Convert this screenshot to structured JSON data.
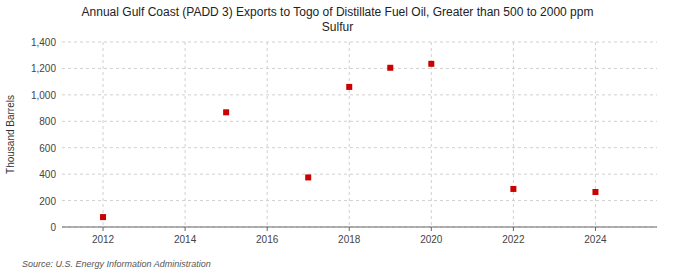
{
  "chart_data": {
    "type": "scatter",
    "title": "Annual Gulf Coast (PADD 3) Exports to Togo of Distillate Fuel Oil, Greater than 500 to 2000 ppm\nSulfur",
    "ylabel": "Thousand Barrels",
    "source": "Source: U.S. Energy Information Administration",
    "x": [
      2012,
      2015,
      2017,
      2018,
      2019,
      2020,
      2022,
      2024
    ],
    "values": [
      75,
      868,
      375,
      1060,
      1205,
      1235,
      288,
      265
    ],
    "color": "#cc0000",
    "marker": "square",
    "xlim": [
      2011,
      2025.5
    ],
    "ylim": [
      0,
      1400
    ],
    "xticks": [
      2012,
      2014,
      2016,
      2018,
      2020,
      2022,
      2024
    ],
    "yticks": [
      0,
      200,
      400,
      600,
      800,
      {
        "value": 1000,
        "label": "1,000"
      },
      {
        "value": 1200,
        "label": "1,200"
      },
      {
        "value": 1400,
        "label": "1,400"
      }
    ],
    "grid": true
  }
}
